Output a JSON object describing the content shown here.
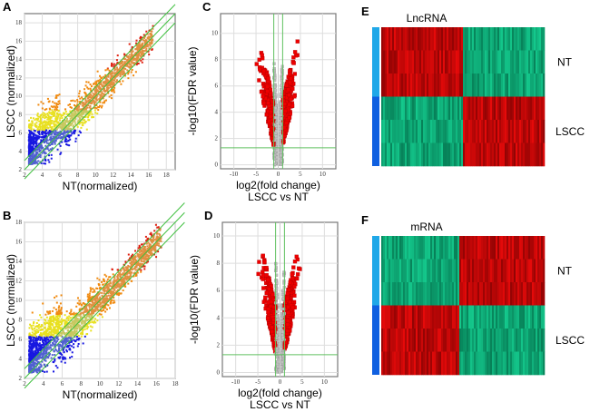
{
  "chart_data": [
    {
      "panel": "A",
      "type": "scatter",
      "xlabel": "NT(normalized)",
      "ylabel": "LSCC (normalized)",
      "xlim": [
        2,
        19
      ],
      "ylim": [
        2,
        19
      ],
      "xticks": [
        2,
        4,
        6,
        8,
        10,
        12,
        14,
        16,
        18
      ],
      "yticks": [
        2,
        4,
        6,
        8,
        10,
        12,
        14,
        16,
        18
      ],
      "grid": true,
      "reference_lines": [
        "y=x",
        "y=x+1",
        "y=x-1"
      ],
      "colors": {
        "low": "#1010e0",
        "mid": "#e8e820",
        "high": "#f08010",
        "top": "#e01010",
        "lines": "#40c040"
      }
    },
    {
      "panel": "B",
      "type": "scatter",
      "xlabel": "NT(normalized)",
      "ylabel": "LSCC (normalized)",
      "xlim": [
        2,
        18
      ],
      "ylim": [
        2,
        18
      ],
      "xticks": [
        2,
        4,
        6,
        8,
        10,
        12,
        14,
        16,
        18
      ],
      "yticks": [
        2,
        4,
        6,
        8,
        10,
        12,
        14,
        16,
        18
      ],
      "grid": true,
      "reference_lines": [
        "y=x",
        "y=x+1",
        "y=x-1"
      ]
    },
    {
      "panel": "C",
      "type": "scatter",
      "subtype": "volcano",
      "xlabel": "log2(fold change)",
      "xlabel2": "LSCC vs NT",
      "ylabel": "-log10(FDR value)",
      "xlim": [
        -13,
        13
      ],
      "ylim": [
        -0.3,
        11.5
      ],
      "xticks": [
        -10,
        -5,
        0,
        5,
        10
      ],
      "yticks": [
        0,
        2,
        4,
        6,
        8,
        10
      ],
      "thresholds": {
        "fold_change": [
          -1,
          1
        ],
        "fdr": 1.3
      },
      "colors": {
        "significant": "#ee0000",
        "nonsignificant": "#bbbbbb"
      }
    },
    {
      "panel": "D",
      "type": "scatter",
      "subtype": "volcano",
      "xlabel": "log2(fold change)",
      "xlabel2": "LSCC vs NT",
      "ylabel": "-log10(FDR value)",
      "xlim": [
        -13,
        13
      ],
      "ylim": [
        -0.3,
        11
      ],
      "xticks": [
        -10,
        -5,
        0,
        5,
        10
      ],
      "yticks": [
        0,
        2,
        4,
        6,
        8,
        10
      ],
      "thresholds": {
        "fold_change": [
          -1,
          1
        ],
        "fdr": 1.3
      }
    },
    {
      "panel": "E",
      "type": "heatmap",
      "title": "LncRNA",
      "groups": [
        "NT",
        "LSCC"
      ],
      "group_colors": [
        "#20a8e8",
        "#1060e0"
      ],
      "pattern": "NT: red then green; LSCC: green then red"
    },
    {
      "panel": "F",
      "type": "heatmap",
      "title": "mRNA",
      "groups": [
        "NT",
        "LSCC"
      ],
      "group_colors": [
        "#20a8e8",
        "#1060e0"
      ],
      "pattern": "NT: green then red; LSCC: red then green"
    }
  ]
}
